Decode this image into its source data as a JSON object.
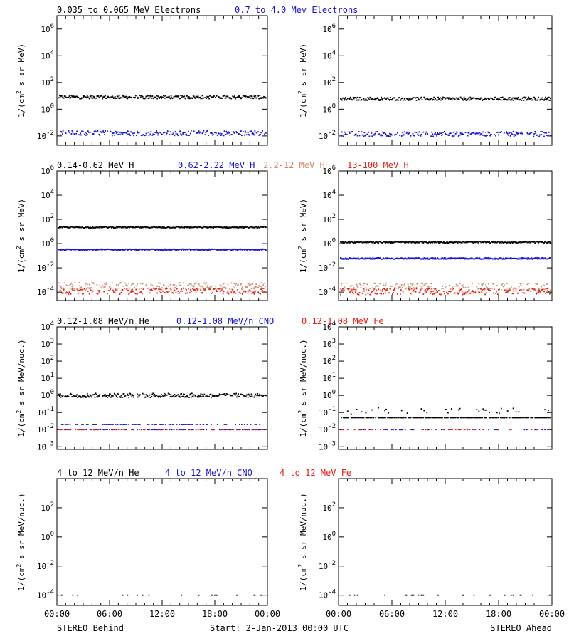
{
  "colors": {
    "black": "#000000",
    "blue": "#1414d2",
    "tan": "#cd8a6e",
    "red": "#e02014"
  },
  "x_ticks": [
    "00:00",
    "06:00",
    "12:00",
    "18:00",
    "00:00"
  ],
  "footer": {
    "left": "STEREO Behind",
    "center": "Start:  2-Jan-2013 00:00 UTC",
    "right": "STEREO Ahead"
  },
  "row_titles": [
    [
      {
        "text": "0.035 to 0.065 MeV Electrons",
        "color": "black"
      },
      {
        "text": "0.7 to 4.0 Mev Electrons",
        "color": "blue"
      }
    ],
    [
      {
        "text": "0.14-0.62 MeV H",
        "color": "black"
      },
      {
        "text": "0.62-2.22 MeV H",
        "color": "blue"
      },
      {
        "text": "2.2-12 MeV H",
        "color": "tan"
      },
      {
        "text": "13-100 MeV H",
        "color": "red"
      }
    ],
    [
      {
        "text": "0.12-1.08 MeV/n He",
        "color": "black"
      },
      {
        "text": "0.12-1.08 MeV/n CNO",
        "color": "blue"
      },
      {
        "text": "0.12-1.08 MeV Fe",
        "color": "red"
      }
    ],
    [
      {
        "text": "4 to 12 MeV/n He",
        "color": "black"
      },
      {
        "text": "4 to 12 MeV/n CNO",
        "color": "blue"
      },
      {
        "text": "4 to 12 MeV Fe",
        "color": "red"
      }
    ]
  ],
  "chart_data": [
    {
      "type": "scatter",
      "panel": "STEREO Behind",
      "row": 1,
      "ylabel": "1/(cm^2 s sr MeV)",
      "yscale": "log",
      "ylim": [
        0.002,
        10000000
      ],
      "xlim": [
        "00:00",
        "24:00"
      ],
      "yticks": [
        {
          "v": 0.01,
          "label": "10^-2"
        },
        {
          "v": 1,
          "label": "10^0"
        },
        {
          "v": 100,
          "label": "10^2"
        },
        {
          "v": 10000,
          "label": "10^4"
        },
        {
          "v": 1000000,
          "label": "10^6"
        }
      ],
      "series": [
        {
          "color": "black",
          "level": 8,
          "spread": 0.12,
          "density": 0.9
        },
        {
          "color": "blue",
          "level": 0.016,
          "spread": 0.18,
          "density": 0.7
        }
      ]
    },
    {
      "type": "scatter",
      "panel": "STEREO Ahead",
      "row": 1,
      "ylabel": "1/(cm^2 s sr MeV)",
      "yscale": "log",
      "ylim": [
        0.002,
        10000000
      ],
      "xlim": [
        "00:00",
        "24:00"
      ],
      "yticks": [
        {
          "v": 0.01,
          "label": "10^-2"
        },
        {
          "v": 1,
          "label": "10^0"
        },
        {
          "v": 100,
          "label": "10^2"
        },
        {
          "v": 10000,
          "label": "10^4"
        },
        {
          "v": 1000000,
          "label": "10^6"
        }
      ],
      "series": [
        {
          "color": "black",
          "level": 6,
          "spread": 0.12,
          "density": 0.9
        },
        {
          "color": "blue",
          "level": 0.014,
          "spread": 0.18,
          "density": 0.7
        }
      ]
    },
    {
      "type": "scatter",
      "panel": "STEREO Behind",
      "row": 2,
      "ylabel": "1/(cm^2 s sr MeV)",
      "yscale": "log",
      "ylim": [
        2e-05,
        1000000
      ],
      "xlim": [
        "00:00",
        "24:00"
      ],
      "yticks": [
        {
          "v": 0.0001,
          "label": "10^-4"
        },
        {
          "v": 0.01,
          "label": "10^-2"
        },
        {
          "v": 1,
          "label": "10^0"
        },
        {
          "v": 100,
          "label": "10^2"
        },
        {
          "v": 10000,
          "label": "10^4"
        },
        {
          "v": 1000000,
          "label": "10^6"
        }
      ],
      "series": [
        {
          "color": "black",
          "level": 22,
          "spread": 0.05,
          "density": 1
        },
        {
          "color": "blue",
          "level": 0.32,
          "spread": 0.05,
          "density": 1
        },
        {
          "color": "tan",
          "level": 0.0003,
          "spread": 0.3,
          "density": 0.6
        },
        {
          "color": "red",
          "level": 0.00012,
          "spread": 0.25,
          "density": 0.6
        }
      ]
    },
    {
      "type": "scatter",
      "panel": "STEREO Ahead",
      "row": 2,
      "ylabel": "1/(cm^2 s sr MeV)",
      "yscale": "log",
      "ylim": [
        2e-05,
        1000000
      ],
      "xlim": [
        "00:00",
        "24:00"
      ],
      "yticks": [
        {
          "v": 0.0001,
          "label": "10^-4"
        },
        {
          "v": 0.01,
          "label": "10^-2"
        },
        {
          "v": 1,
          "label": "10^0"
        },
        {
          "v": 100,
          "label": "10^2"
        },
        {
          "v": 10000,
          "label": "10^4"
        },
        {
          "v": 1000000,
          "label": "10^6"
        }
      ],
      "series": [
        {
          "color": "black",
          "level": 1.3,
          "spread": 0.06,
          "density": 1
        },
        {
          "color": "blue",
          "level": 0.06,
          "spread": 0.06,
          "density": 1
        },
        {
          "color": "tan",
          "level": 0.00028,
          "spread": 0.3,
          "density": 0.6
        },
        {
          "color": "red",
          "level": 0.00011,
          "spread": 0.25,
          "density": 0.6
        }
      ]
    },
    {
      "type": "scatter",
      "panel": "STEREO Behind",
      "row": 3,
      "ylabel": "1/(cm^2 s sr MeV/nuc.)",
      "yscale": "log",
      "ylim": [
        0.0007,
        10000
      ],
      "xlim": [
        "00:00",
        "24:00"
      ],
      "yticks": [
        {
          "v": 0.001,
          "label": "10^-3"
        },
        {
          "v": 0.01,
          "label": "10^-2"
        },
        {
          "v": 0.1,
          "label": "10^-1"
        },
        {
          "v": 1,
          "label": "10^0"
        },
        {
          "v": 10,
          "label": "10^1"
        },
        {
          "v": 100,
          "label": "10^2"
        },
        {
          "v": 1000,
          "label": "10^3"
        },
        {
          "v": 10000,
          "label": "10^4"
        }
      ],
      "series": [
        {
          "color": "black",
          "level": 1,
          "spread": 0.12,
          "density": 0.8
        },
        {
          "color": "blue",
          "level": 0.02,
          "spread": 0,
          "density": 0.35
        },
        {
          "color": "blue",
          "level": 0.01,
          "spread": 0,
          "density": 0.35
        },
        {
          "color": "red",
          "level": 0.01,
          "spread": 0,
          "density": 0.25
        }
      ]
    },
    {
      "type": "scatter",
      "panel": "STEREO Ahead",
      "row": 3,
      "ylabel": "1/(cm^2 s sr MeV/nuc.)",
      "yscale": "log",
      "ylim": [
        0.0007,
        10000
      ],
      "xlim": [
        "00:00",
        "24:00"
      ],
      "yticks": [
        {
          "v": 0.001,
          "label": "10^-3"
        },
        {
          "v": 0.01,
          "label": "10^-2"
        },
        {
          "v": 0.1,
          "label": "10^-1"
        },
        {
          "v": 1,
          "label": "10^0"
        },
        {
          "v": 10,
          "label": "10^1"
        },
        {
          "v": 100,
          "label": "10^2"
        },
        {
          "v": 1000,
          "label": "10^3"
        },
        {
          "v": 10000,
          "label": "10^4"
        }
      ],
      "series": [
        {
          "color": "black",
          "level": 0.05,
          "spread": 0,
          "density": 0.7
        },
        {
          "color": "black",
          "level": 0.12,
          "spread": 0.2,
          "density": 0.1
        },
        {
          "color": "blue",
          "level": 0.01,
          "spread": 0,
          "density": 0.15
        },
        {
          "color": "red",
          "level": 0.01,
          "spread": 0,
          "density": 0.12
        }
      ]
    },
    {
      "type": "scatter",
      "panel": "STEREO Behind",
      "row": 4,
      "ylabel": "1/(cm^2 s sr MeV/nuc.)",
      "yscale": "log",
      "ylim": [
        2e-05,
        10000
      ],
      "xlim": [
        "00:00",
        "24:00"
      ],
      "yticks": [
        {
          "v": 0.0001,
          "label": "10^-4"
        },
        {
          "v": 0.01,
          "label": "10^-2"
        },
        {
          "v": 1,
          "label": "10^0"
        },
        {
          "v": 100,
          "label": "10^2"
        }
      ],
      "series": [
        {
          "color": "black",
          "level": 0.0001,
          "spread": 0,
          "density": 0.07
        }
      ]
    },
    {
      "type": "scatter",
      "panel": "STEREO Ahead",
      "row": 4,
      "ylabel": "1/(cm^2 s sr MeV/nuc.)",
      "yscale": "log",
      "ylim": [
        2e-05,
        10000
      ],
      "xlim": [
        "00:00",
        "24:00"
      ],
      "yticks": [
        {
          "v": 0.0001,
          "label": "10^-4"
        },
        {
          "v": 0.01,
          "label": "10^-2"
        },
        {
          "v": 1,
          "label": "10^0"
        },
        {
          "v": 100,
          "label": "10^2"
        }
      ],
      "series": [
        {
          "color": "black",
          "level": 0.0001,
          "spread": 0,
          "density": 0.07
        }
      ]
    }
  ]
}
